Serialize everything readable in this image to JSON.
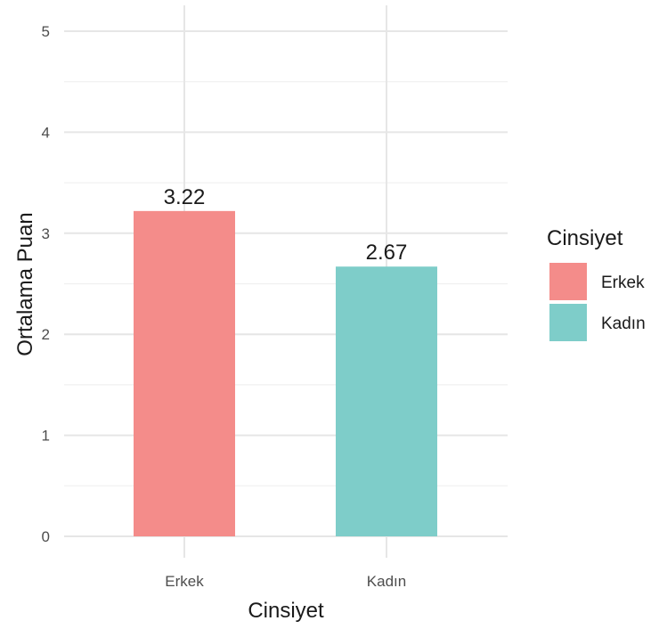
{
  "chart_data": {
    "type": "bar",
    "categories": [
      "Erkek",
      "Kadın"
    ],
    "values": [
      3.22,
      2.67
    ],
    "value_labels": [
      "3.22",
      "2.67"
    ],
    "colors": [
      "#F8766D",
      "#00BFC4"
    ],
    "bar_colors_rendered": [
      "#F48C8A",
      "#7ECDC9"
    ],
    "xlabel": "Cinsiyet",
    "ylabel": "Ortalama Puan",
    "ylim": [
      0,
      5
    ],
    "yticks": [
      "0",
      "1",
      "2",
      "3",
      "4",
      "5"
    ],
    "grid": true,
    "legend": {
      "title": "Cinsiyet",
      "position": "right",
      "entries": [
        "Erkek",
        "Kadın"
      ]
    }
  }
}
